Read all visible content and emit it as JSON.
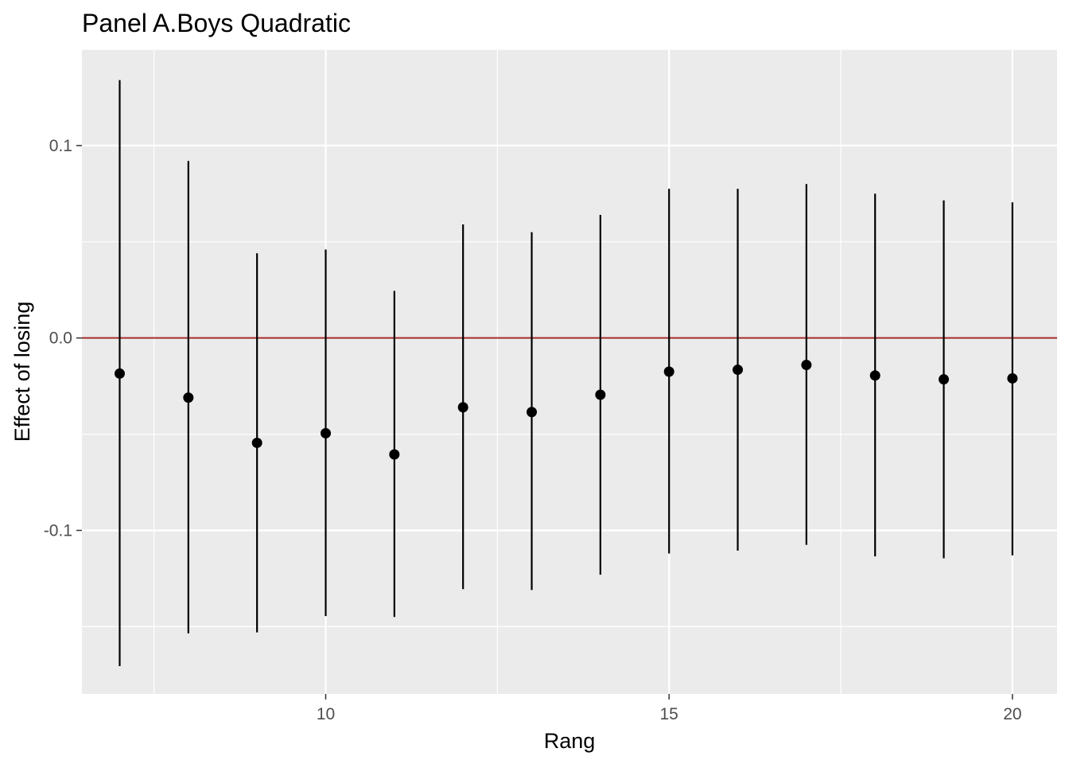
{
  "chart_data": {
    "type": "errorbar",
    "title": "Panel A.Boys Quadratic",
    "xlabel": "Rang",
    "ylabel": "Effect of losing",
    "xlim": [
      6.45,
      20.65
    ],
    "ylim": [
      -0.185,
      0.15
    ],
    "x_ticks": [
      10,
      15,
      20
    ],
    "x_tick_labels": [
      "10",
      "15",
      "20"
    ],
    "y_ticks": [
      -0.1,
      0.0,
      0.1
    ],
    "y_tick_labels": [
      "-0.1",
      "0.0",
      "0.1"
    ],
    "reference_line": 0.0,
    "grid": true,
    "points": [
      {
        "x": 7,
        "y": -0.0185,
        "lower": -0.1705,
        "upper": 0.134
      },
      {
        "x": 8,
        "y": -0.031,
        "lower": -0.1535,
        "upper": 0.092
      },
      {
        "x": 9,
        "y": -0.0545,
        "lower": -0.153,
        "upper": 0.044
      },
      {
        "x": 10,
        "y": -0.0495,
        "lower": -0.1445,
        "upper": 0.046
      },
      {
        "x": 11,
        "y": -0.0605,
        "lower": -0.145,
        "upper": 0.0245
      },
      {
        "x": 12,
        "y": -0.036,
        "lower": -0.1305,
        "upper": 0.059
      },
      {
        "x": 13,
        "y": -0.0385,
        "lower": -0.131,
        "upper": 0.055
      },
      {
        "x": 14,
        "y": -0.0295,
        "lower": -0.123,
        "upper": 0.064
      },
      {
        "x": 15,
        "y": -0.0175,
        "lower": -0.112,
        "upper": 0.0775
      },
      {
        "x": 16,
        "y": -0.0165,
        "lower": -0.1105,
        "upper": 0.0775
      },
      {
        "x": 17,
        "y": -0.014,
        "lower": -0.1075,
        "upper": 0.08
      },
      {
        "x": 18,
        "y": -0.0195,
        "lower": -0.1135,
        "upper": 0.075
      },
      {
        "x": 19,
        "y": -0.0215,
        "lower": -0.1145,
        "upper": 0.0715
      },
      {
        "x": 20,
        "y": -0.021,
        "lower": -0.113,
        "upper": 0.0705
      }
    ],
    "colors": {
      "panel_background": "#ebebeb",
      "grid": "#ffffff",
      "reference_line": "#a52a2a",
      "points": "#000000"
    }
  }
}
